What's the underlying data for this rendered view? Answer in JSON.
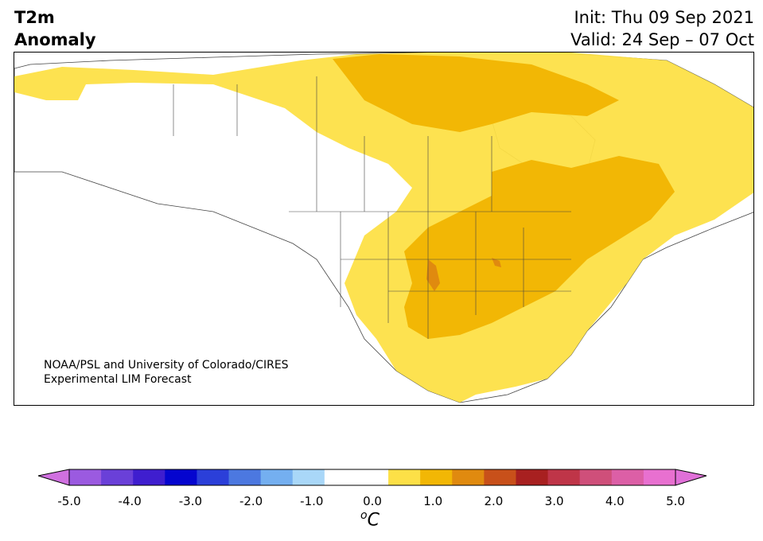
{
  "header": {
    "title_line1": "T2m",
    "title_line2": "Anomaly",
    "init": "Init: Thu 09 Sep 2021",
    "valid": "Valid: 24 Sep – 07 Oct"
  },
  "credit": {
    "line1": "NOAA/PSL and University of Colorado/CIRES",
    "line2": "Experimental LIM Forecast"
  },
  "colorbar": {
    "unit_base": "C",
    "unit_sup": "o",
    "ticks": [
      "-5.0",
      "-4.0",
      "-3.0",
      "-2.0",
      "-1.0",
      "0.0",
      "1.0",
      "2.0",
      "3.0",
      "4.0",
      "5.0"
    ],
    "colors": [
      "#9b5ae0",
      "#6a40d8",
      "#3f1ecf",
      "#0505cf",
      "#2b3fd9",
      "#4c78e0",
      "#74aff0",
      "#a9d7f8",
      "#ffffff",
      "#ffffff",
      "#fde047",
      "#f2b705",
      "#e08a0f",
      "#c8501a",
      "#a82020",
      "#bf3548",
      "#cf4f7a",
      "#dc5fa6",
      "#e870d0"
    ],
    "under_color": "#d070e0",
    "over_color": "#e070d8"
  },
  "map": {
    "anomaly_colors": {
      "0.5-1.0": "#fde047",
      "1.0-1.5": "#f2b705",
      "1.5-2.0": "#e08a0f"
    }
  }
}
